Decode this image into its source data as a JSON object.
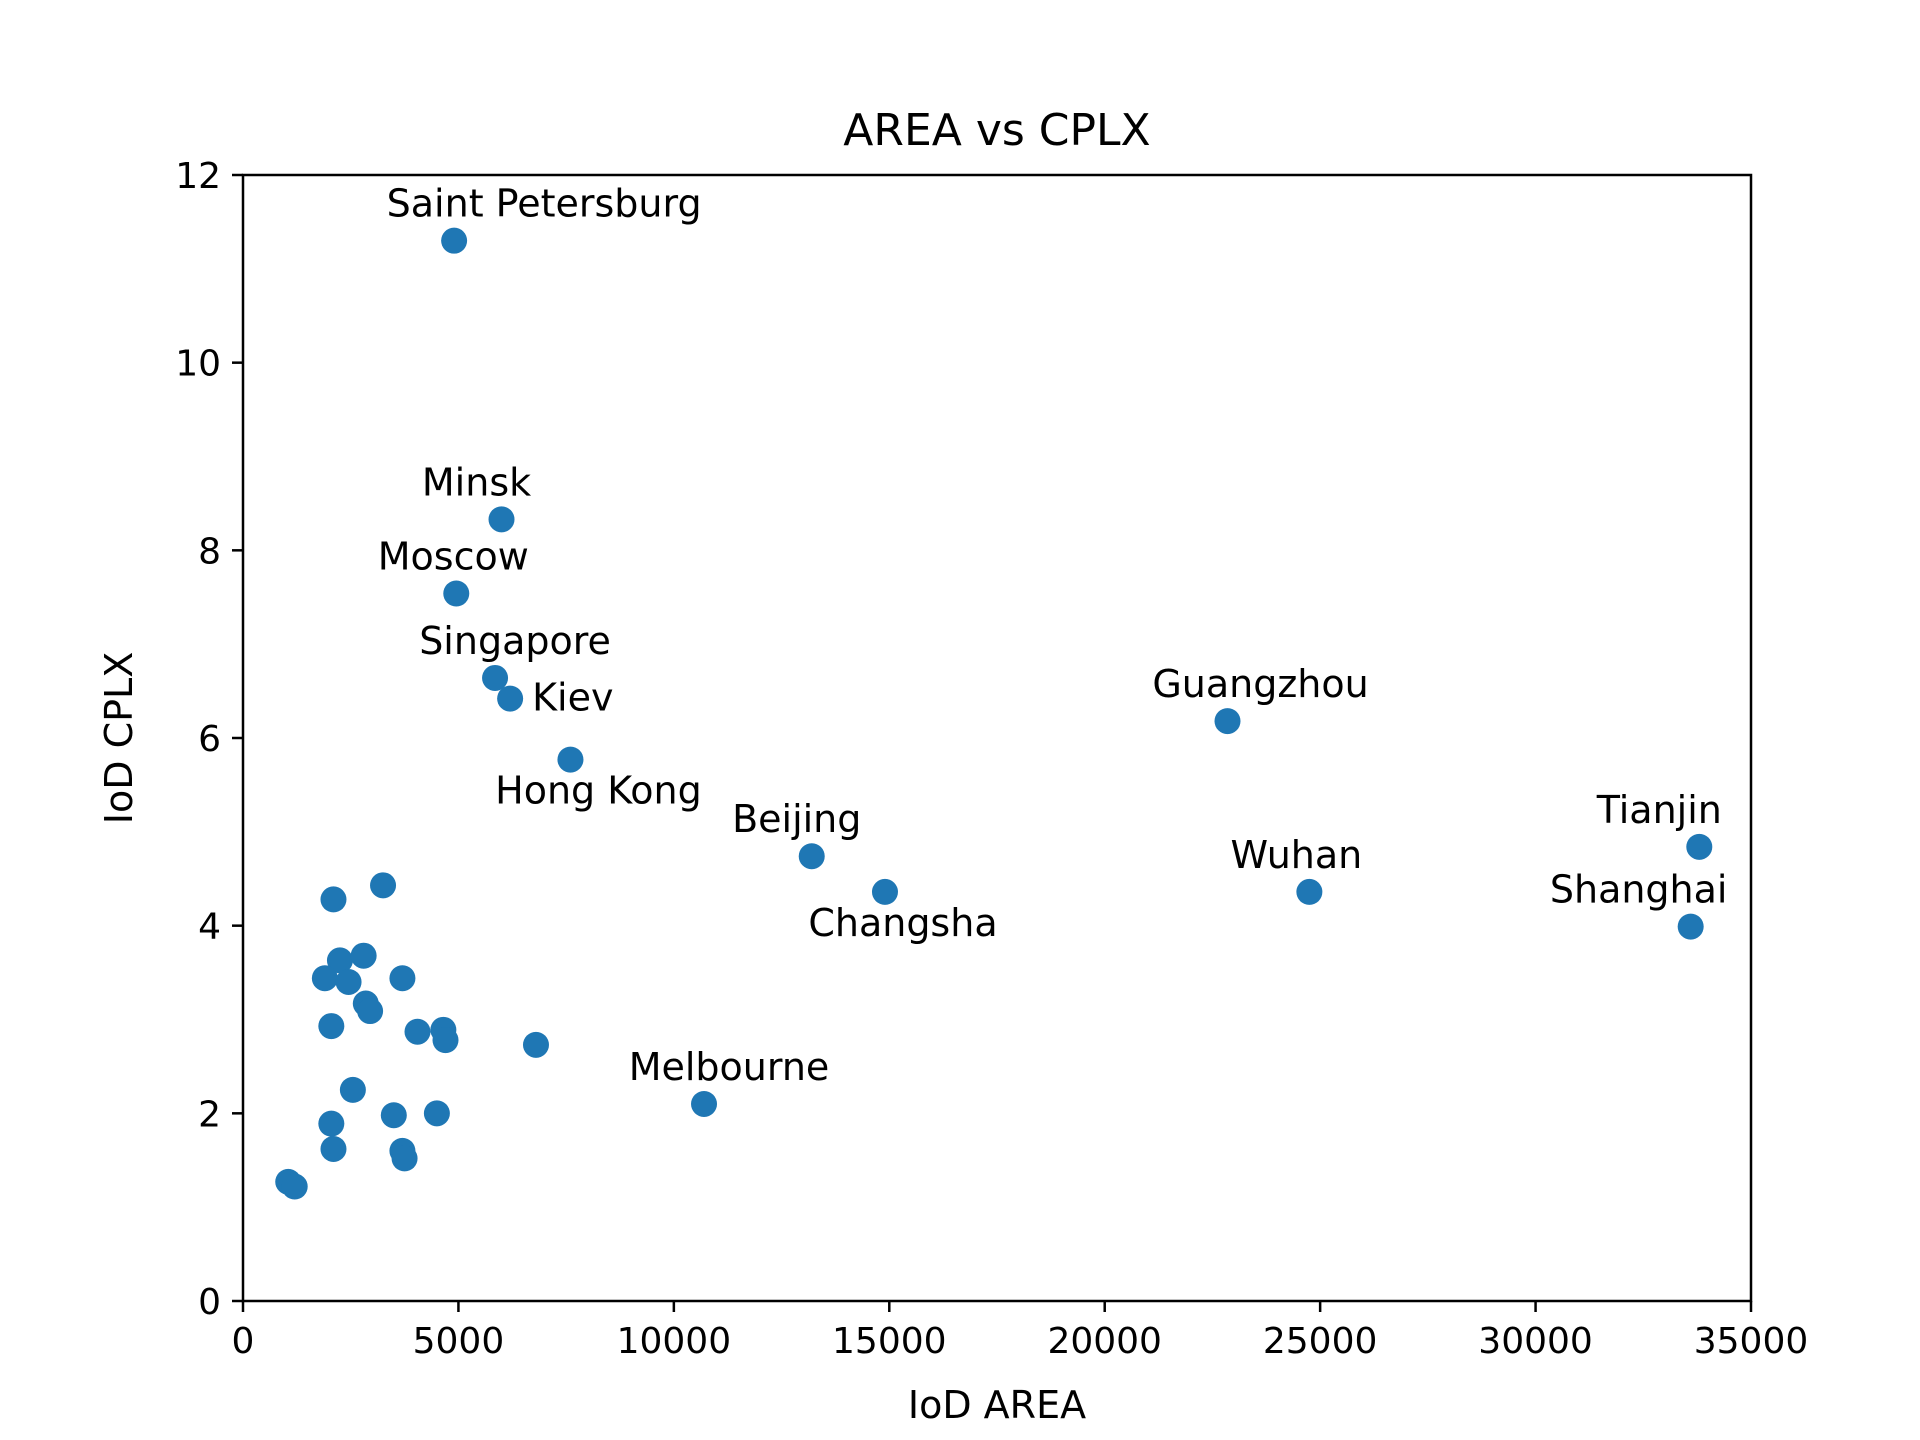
{
  "chart_data": {
    "type": "scatter",
    "title": "AREA vs CPLX",
    "xlabel": "IoD AREA",
    "ylabel": "IoD CPLX",
    "xlim": [
      0,
      35000
    ],
    "ylim": [
      0,
      12
    ],
    "xticks": [
      0,
      5000,
      10000,
      15000,
      20000,
      25000,
      30000,
      35000
    ],
    "yticks": [
      0,
      2,
      4,
      6,
      8,
      10,
      12
    ],
    "grid": false,
    "color": "#1f77b4",
    "points": [
      {
        "x": 4900,
        "y": 11.3,
        "label": "Saint Petersburg"
      },
      {
        "x": 6000,
        "y": 8.33,
        "label": "Minsk"
      },
      {
        "x": 4950,
        "y": 7.54,
        "label": "Moscow"
      },
      {
        "x": 5850,
        "y": 6.64,
        "label": "Singapore"
      },
      {
        "x": 6200,
        "y": 6.42,
        "label": "Kiev"
      },
      {
        "x": 7600,
        "y": 5.77,
        "label": "Hong Kong"
      },
      {
        "x": 13200,
        "y": 4.74,
        "label": "Beijing"
      },
      {
        "x": 14900,
        "y": 4.36,
        "label": "Changsha"
      },
      {
        "x": 22850,
        "y": 6.18,
        "label": "Guangzhou"
      },
      {
        "x": 24750,
        "y": 4.36,
        "label": "Wuhan"
      },
      {
        "x": 33800,
        "y": 4.84,
        "label": "Tianjin"
      },
      {
        "x": 33600,
        "y": 3.99,
        "label": "Shanghai"
      },
      {
        "x": 10700,
        "y": 2.1,
        "label": "Melbourne"
      },
      {
        "x": 2100,
        "y": 4.28
      },
      {
        "x": 3250,
        "y": 4.43
      },
      {
        "x": 2250,
        "y": 3.63
      },
      {
        "x": 2800,
        "y": 3.68
      },
      {
        "x": 1900,
        "y": 3.44
      },
      {
        "x": 2450,
        "y": 3.4
      },
      {
        "x": 3700,
        "y": 3.44
      },
      {
        "x": 2850,
        "y": 3.17
      },
      {
        "x": 2950,
        "y": 3.09
      },
      {
        "x": 2050,
        "y": 2.93
      },
      {
        "x": 4050,
        "y": 2.87
      },
      {
        "x": 4650,
        "y": 2.89
      },
      {
        "x": 4700,
        "y": 2.78
      },
      {
        "x": 6800,
        "y": 2.73
      },
      {
        "x": 2550,
        "y": 2.25
      },
      {
        "x": 3500,
        "y": 1.98
      },
      {
        "x": 4500,
        "y": 2.0
      },
      {
        "x": 2050,
        "y": 1.89
      },
      {
        "x": 2100,
        "y": 1.62
      },
      {
        "x": 3700,
        "y": 1.6
      },
      {
        "x": 3750,
        "y": 1.52
      },
      {
        "x": 1050,
        "y": 1.27
      },
      {
        "x": 1200,
        "y": 1.22
      }
    ]
  }
}
